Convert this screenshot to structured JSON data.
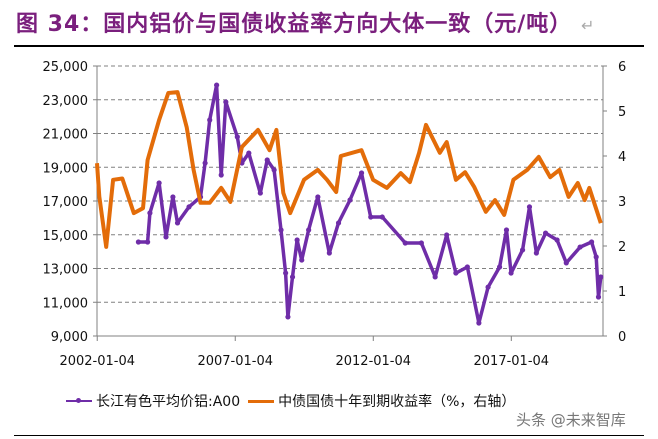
{
  "title": "图 34：国内铝价与国债收益率方向大体一致（元/吨）",
  "paragraph_mark": "↵",
  "watermark": "头条 @未来智库",
  "colors": {
    "title": "#7a1f7d",
    "aluminum": "#6f2da8",
    "yield": "#e36c09",
    "grid": "#808080"
  },
  "chart_data": {
    "type": "line",
    "title": "",
    "x_tick_labels": [
      "2002-01-04",
      "2007-01-04",
      "2012-01-04",
      "2017-01-04"
    ],
    "y_left": {
      "ylim": [
        9000,
        25000
      ],
      "ticks": [
        "9,000",
        "11,000",
        "13,000",
        "15,000",
        "17,000",
        "19,000",
        "21,000",
        "23,000",
        "25,000"
      ]
    },
    "y_right": {
      "ylim": [
        0,
        6
      ],
      "ticks": [
        "0",
        "1",
        "2",
        "3",
        "4",
        "5",
        "6"
      ]
    },
    "grid": "horizontal dashed",
    "legend_position": "bottom",
    "series": [
      {
        "name": "长江有色平均价铝:A00",
        "axis": "left",
        "marker": "dot",
        "points": [
          [
            "2003-07",
            14570
          ],
          [
            "2003-11",
            14570
          ],
          [
            "2003-12",
            16290
          ],
          [
            "2004-04",
            18070
          ],
          [
            "2004-07",
            14870
          ],
          [
            "2004-10",
            17240
          ],
          [
            "2004-12",
            15700
          ],
          [
            "2005-05",
            16650
          ],
          [
            "2005-10",
            17240
          ],
          [
            "2005-12",
            19250
          ],
          [
            "2006-02",
            21800
          ],
          [
            "2006-05",
            23870
          ],
          [
            "2006-07",
            18540
          ],
          [
            "2006-09",
            22870
          ],
          [
            "2007-02",
            20800
          ],
          [
            "2007-04",
            19250
          ],
          [
            "2007-07",
            19840
          ],
          [
            "2007-12",
            17470
          ],
          [
            "2008-03",
            19430
          ],
          [
            "2008-06",
            18840
          ],
          [
            "2008-09",
            15280
          ],
          [
            "2008-11",
            12730
          ],
          [
            "2008-12",
            10130
          ],
          [
            "2009-02",
            12500
          ],
          [
            "2009-04",
            14690
          ],
          [
            "2009-06",
            13500
          ],
          [
            "2009-09",
            15280
          ],
          [
            "2010-01",
            17240
          ],
          [
            "2010-06",
            13920
          ],
          [
            "2010-10",
            15700
          ],
          [
            "2011-03",
            17060
          ],
          [
            "2011-08",
            18660
          ],
          [
            "2011-12",
            16050
          ],
          [
            "2012-05",
            16050
          ],
          [
            "2013-03",
            14510
          ],
          [
            "2013-10",
            14510
          ],
          [
            "2014-04",
            12500
          ],
          [
            "2014-09",
            14990
          ],
          [
            "2015-01",
            12730
          ],
          [
            "2015-06",
            13090
          ],
          [
            "2015-11",
            9770
          ],
          [
            "2016-03",
            11900
          ],
          [
            "2016-08",
            13090
          ],
          [
            "2016-11",
            15280
          ],
          [
            "2017-01",
            12730
          ],
          [
            "2017-06",
            14100
          ],
          [
            "2017-09",
            16650
          ],
          [
            "2017-12",
            13920
          ],
          [
            "2018-04",
            15100
          ],
          [
            "2018-09",
            14690
          ],
          [
            "2019-01",
            13330
          ],
          [
            "2019-07",
            14270
          ],
          [
            "2019-12",
            14570
          ],
          [
            "2020-02",
            13680
          ],
          [
            "2020-03",
            11310
          ],
          [
            "2020-04",
            12500
          ]
        ]
      },
      {
        "name": "中债国债十年到期收益率（%，右轴）",
        "axis": "right",
        "marker": "none",
        "points": [
          [
            "2002-01",
            3.84
          ],
          [
            "2002-02",
            3.1
          ],
          [
            "2002-05",
            1.98
          ],
          [
            "2002-08",
            3.47
          ],
          [
            "2002-12",
            3.5
          ],
          [
            "2003-05",
            2.73
          ],
          [
            "2003-09",
            2.84
          ],
          [
            "2003-11",
            3.91
          ],
          [
            "2004-04",
            4.8
          ],
          [
            "2004-08",
            5.4
          ],
          [
            "2004-12",
            5.42
          ],
          [
            "2005-04",
            4.64
          ],
          [
            "2005-07",
            3.69
          ],
          [
            "2005-10",
            2.96
          ],
          [
            "2006-02",
            2.96
          ],
          [
            "2006-07",
            3.29
          ],
          [
            "2006-11",
            2.98
          ],
          [
            "2007-04",
            4.2
          ],
          [
            "2007-11",
            4.58
          ],
          [
            "2008-04",
            4.13
          ],
          [
            "2008-07",
            4.58
          ],
          [
            "2008-10",
            3.18
          ],
          [
            "2009-01",
            2.73
          ],
          [
            "2009-07",
            3.47
          ],
          [
            "2010-01",
            3.69
          ],
          [
            "2010-05",
            3.47
          ],
          [
            "2010-09",
            3.2
          ],
          [
            "2010-11",
            4.0
          ],
          [
            "2011-08",
            4.13
          ],
          [
            "2012-01",
            3.47
          ],
          [
            "2012-07",
            3.29
          ],
          [
            "2013-01",
            3.62
          ],
          [
            "2013-05",
            3.42
          ],
          [
            "2013-09",
            4.07
          ],
          [
            "2013-12",
            4.69
          ],
          [
            "2014-06",
            4.07
          ],
          [
            "2014-09",
            4.31
          ],
          [
            "2015-01",
            3.47
          ],
          [
            "2015-05",
            3.64
          ],
          [
            "2015-09",
            3.31
          ],
          [
            "2016-02",
            2.76
          ],
          [
            "2016-06",
            3.02
          ],
          [
            "2016-10",
            2.69
          ],
          [
            "2017-02",
            3.47
          ],
          [
            "2017-08",
            3.69
          ],
          [
            "2018-01",
            3.98
          ],
          [
            "2018-06",
            3.53
          ],
          [
            "2018-10",
            3.69
          ],
          [
            "2019-02",
            3.09
          ],
          [
            "2019-06",
            3.4
          ],
          [
            "2019-09",
            3.02
          ],
          [
            "2019-11",
            3.29
          ],
          [
            "2020-04",
            2.51
          ]
        ]
      }
    ]
  }
}
